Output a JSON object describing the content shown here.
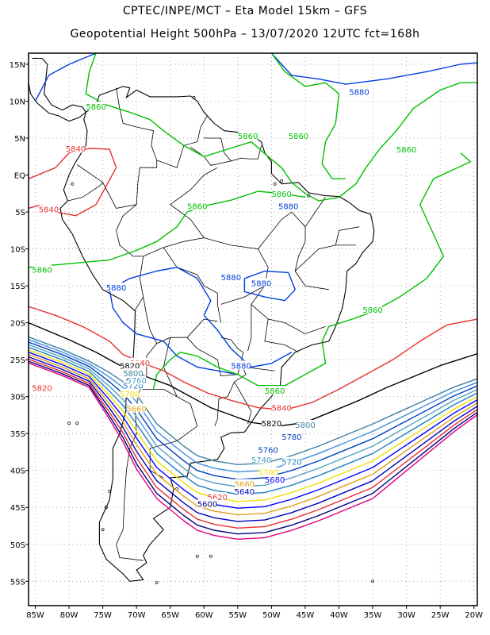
{
  "header": {
    "line1": "CPTEC/INPE/MCT –  Eta Model 15km – GFS",
    "line2": "Geopotential Height 500hPa – 13/07/2020 12UTC fct=168h"
  },
  "axes": {
    "lon_labels": [
      "85W",
      "80W",
      "75W",
      "70W",
      "65W",
      "60W",
      "55W",
      "50W",
      "45W",
      "40W",
      "35W",
      "30W",
      "25W",
      "20W"
    ],
    "lon_values": [
      -85,
      -80,
      -75,
      -70,
      -65,
      -60,
      -55,
      -50,
      -45,
      -40,
      -35,
      -30,
      -25,
      -20
    ],
    "lat_labels": [
      "15N",
      "10N",
      "5N",
      "EQ",
      "5S",
      "10S",
      "15S",
      "20S",
      "25S",
      "30S",
      "35S",
      "40S",
      "45S",
      "50S",
      "55S"
    ],
    "lat_values": [
      15,
      10,
      5,
      0,
      -5,
      -10,
      -15,
      -20,
      -25,
      -30,
      -35,
      -40,
      -45,
      -50,
      -55
    ],
    "lon_range": [
      -86,
      -19.5
    ],
    "lat_range": [
      -58.3,
      16.5
    ],
    "grid": true
  },
  "colors": {
    "c5580": "#e00080",
    "c5600": "#000080",
    "c5620": "#e83030",
    "c5640": "#0000c0",
    "c5660": "#e0a020",
    "c5680": "#0000ff",
    "c5700": "#f0e000",
    "c5720": "#2080c0",
    "c5740": "#50a0c0",
    "c5760": "#0040c0",
    "c5780": "#4090e0",
    "c5800": "#4080a0",
    "c5820": "#000000",
    "c5840": "#e83030",
    "c5860": "#00c000",
    "c5880": "#0040e0"
  },
  "contour_labels": [
    {
      "text": "5880",
      "color": "#0040e0",
      "lon": -47.5,
      "lat": -4.2
    },
    {
      "text": "5880",
      "color": "#0040e0",
      "lon": -56,
      "lat": -13.8
    },
    {
      "text": "5880",
      "color": "#0040e0",
      "lon": -73,
      "lat": -15.2
    },
    {
      "text": "5880",
      "color": "#0040e0",
      "lon": -51.5,
      "lat": -14.6
    },
    {
      "text": "5880",
      "color": "#0040e0",
      "lon": -54.5,
      "lat": -25.8
    },
    {
      "text": "5880",
      "color": "#0040e0",
      "lon": -37,
      "lat": 11.3
    },
    {
      "text": "5860",
      "color": "#00c000",
      "lon": -76,
      "lat": 9.3
    },
    {
      "text": "5860",
      "color": "#00c000",
      "lon": -53.5,
      "lat": 5.3
    },
    {
      "text": "5860",
      "color": "#00c000",
      "lon": -46,
      "lat": 5.3
    },
    {
      "text": "5860",
      "color": "#00c000",
      "lon": -30,
      "lat": 3.5
    },
    {
      "text": "5860",
      "color": "#00c000",
      "lon": -48.5,
      "lat": -2.5
    },
    {
      "text": "5860",
      "color": "#00c000",
      "lon": -61,
      "lat": -4.2
    },
    {
      "text": "5860",
      "color": "#00c000",
      "lon": -84,
      "lat": -12.8
    },
    {
      "text": "5860",
      "color": "#00c000",
      "lon": -35,
      "lat": -18.2
    },
    {
      "text": "5860",
      "color": "#00c000",
      "lon": -49.5,
      "lat": -29.2
    },
    {
      "text": "5840",
      "color": "#e83030",
      "lon": -79,
      "lat": 3.6
    },
    {
      "text": "5840",
      "color": "#e83030",
      "lon": -83,
      "lat": -4.6
    },
    {
      "text": "5840",
      "color": "#e83030",
      "lon": -69.5,
      "lat": -25.4
    },
    {
      "text": "5840",
      "color": "#e83030",
      "lon": -48.5,
      "lat": -31.5
    },
    {
      "text": "5820",
      "color": "#000000",
      "lon": -71,
      "lat": -25.8
    },
    {
      "text": "5820",
      "color": "#000000",
      "lon": -50,
      "lat": -33.6
    },
    {
      "text": "5820",
      "color": "#e83030",
      "lon": -84,
      "lat": -28.8
    },
    {
      "text": "5800",
      "color": "#4080a0",
      "lon": -45,
      "lat": -33.8
    },
    {
      "text": "5780",
      "color": "#0040c0",
      "lon": -47,
      "lat": -35.4
    },
    {
      "text": "5760",
      "color": "#0040c0",
      "lon": -50.5,
      "lat": -37.2
    },
    {
      "text": "5740",
      "color": "#50a0c0",
      "lon": -51.5,
      "lat": -38.5
    },
    {
      "text": "5720",
      "color": "#2080c0",
      "lon": -47,
      "lat": -38.8
    },
    {
      "text": "5700",
      "color": "#f0e000",
      "lon": -50.5,
      "lat": -40.2
    },
    {
      "text": "5680",
      "color": "#0000ff",
      "lon": -49.5,
      "lat": -41.2
    },
    {
      "text": "5660",
      "color": "#e0a020",
      "lon": -54,
      "lat": -41.8
    },
    {
      "text": "5640",
      "color": "#0000c0",
      "lon": -54,
      "lat": -42.8
    },
    {
      "text": "5620",
      "color": "#e83030",
      "lon": -58,
      "lat": -43.6
    },
    {
      "text": "5600",
      "color": "#000080",
      "lon": -59.5,
      "lat": -44.5
    },
    {
      "text": "5660",
      "color": "#e0a020",
      "lon": -70,
      "lat": -31.6
    },
    {
      "text": "5700",
      "color": "#f0e000",
      "lon": -71,
      "lat": -29.6
    },
    {
      "text": "5720",
      "color": "#2080c0",
      "lon": -70.5,
      "lat": -28.5
    },
    {
      "text": "5760",
      "color": "#50a0c0",
      "lon": -70,
      "lat": -27.8
    },
    {
      "text": "5800",
      "color": "#4080a0",
      "lon": -70.5,
      "lat": -26.8
    }
  ]
}
